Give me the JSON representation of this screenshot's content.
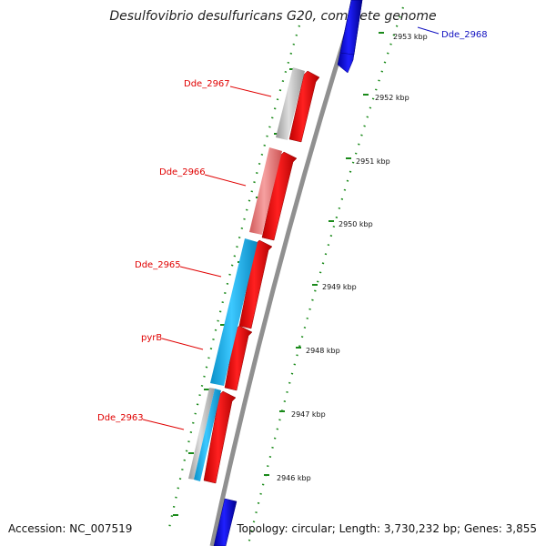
{
  "title": "Desulfovibrio desulfuricans G20, complete genome",
  "footer": {
    "accession": "Accession: NC_007519",
    "summary": "Topology: circular; Length: 3,730,232 bp; Genes: 3,855"
  },
  "kbp_ticks": [
    {
      "label": "2953 kbp"
    },
    {
      "label": "2952 kbp"
    },
    {
      "label": "2951 kbp"
    },
    {
      "label": "2950 kbp"
    },
    {
      "label": "2949 kbp"
    },
    {
      "label": "2948 kbp"
    },
    {
      "label": "2947 kbp"
    },
    {
      "label": "2946 kbp"
    }
  ],
  "gene_labels": [
    {
      "name": "Dde_2968",
      "color": "#1010c0"
    },
    {
      "name": "Dde_2967",
      "color": "#e00000"
    },
    {
      "name": "Dde_2966",
      "color": "#e00000"
    },
    {
      "name": "Dde_2965",
      "color": "#e00000"
    },
    {
      "name": "pyrB",
      "color": "#e00000"
    },
    {
      "name": "Dde_2963",
      "color": "#e00000"
    }
  ],
  "colors": {
    "backbone": "#909090",
    "forward_strand": "#ff0000",
    "reverse_strand": "#0000ee",
    "cog_grey": "#bdbdbd",
    "cog_pink": "#f08a8a",
    "cog_cyan": "#19b6ee",
    "tick_green": "#1a8a1a"
  }
}
